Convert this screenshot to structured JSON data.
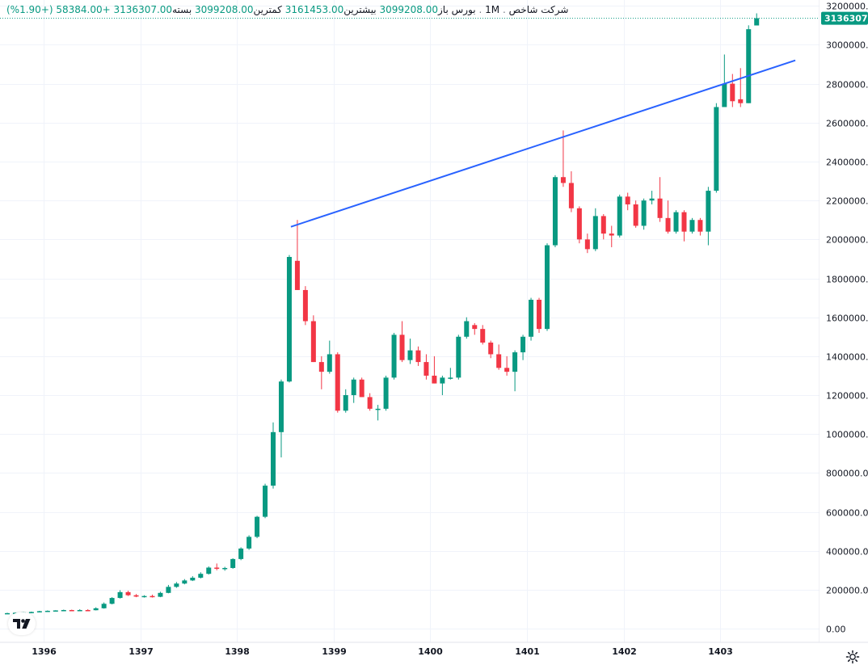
{
  "legend": {
    "title": "شرکت شاخص",
    "interval": "1M",
    "exchange": "بورس",
    "sep": ".",
    "open_label": "باز",
    "open_value": "3099208.00",
    "high_label": "بیشترین",
    "high_value": "3161453.00",
    "low_label": "کمترین",
    "low_value": "3099208.00",
    "close_label": "بسته",
    "close_value": "3136307.00",
    "change": "+58384.00 (+1.90%)"
  },
  "price_tag": "3136307.0",
  "colors": {
    "up": "#089981",
    "down": "#f23645",
    "trendline": "#2962ff",
    "grid": "#f0f3fa"
  },
  "chart_data": {
    "type": "candlestick",
    "ylim": [
      -70000,
      3230000
    ],
    "y_ticks": [
      0,
      200000,
      400000,
      600000,
      800000,
      1000000,
      1200000,
      1400000,
      1600000,
      1800000,
      2000000,
      2200000,
      2400000,
      2600000,
      2800000,
      3000000,
      3200000
    ],
    "y_tick_labels": [
      "0.00",
      "200000.0",
      "400000.0",
      "600000.0",
      "800000.0",
      "1000000.0",
      "1200000.0",
      "1400000.0",
      "1600000.0",
      "1800000.0",
      "2000000.0",
      "2200000.0",
      "2400000.0",
      "2600000.0",
      "2800000.0",
      "3000000.0",
      "3200000.0"
    ],
    "x_tick_labels": [
      "1396",
      "1397",
      "1398",
      "1399",
      "1400",
      "1401",
      "1402",
      "1403"
    ],
    "x_tick_index": [
      4.5,
      16.5,
      28.5,
      40.5,
      52.5,
      64.5,
      76.5,
      88.5
    ],
    "candles": [
      {
        "o": 80000,
        "h": 82000,
        "l": 78000,
        "c": 80000
      },
      {
        "o": 80000,
        "h": 83000,
        "l": 79000,
        "c": 82000
      },
      {
        "o": 82000,
        "h": 85000,
        "l": 81000,
        "c": 84000
      },
      {
        "o": 84000,
        "h": 88000,
        "l": 83000,
        "c": 86000
      },
      {
        "o": 86000,
        "h": 92000,
        "l": 85000,
        "c": 90000
      },
      {
        "o": 90000,
        "h": 94000,
        "l": 88000,
        "c": 92000
      },
      {
        "o": 92000,
        "h": 95000,
        "l": 90000,
        "c": 94000
      },
      {
        "o": 94000,
        "h": 98000,
        "l": 92000,
        "c": 96000
      },
      {
        "o": 96000,
        "h": 98000,
        "l": 93000,
        "c": 95000
      },
      {
        "o": 95000,
        "h": 100000,
        "l": 93000,
        "c": 96000
      },
      {
        "o": 96000,
        "h": 100000,
        "l": 94000,
        "c": 95000
      },
      {
        "o": 95000,
        "h": 110000,
        "l": 94000,
        "c": 105000
      },
      {
        "o": 105000,
        "h": 135000,
        "l": 103000,
        "c": 128000
      },
      {
        "o": 128000,
        "h": 162000,
        "l": 125000,
        "c": 158000
      },
      {
        "o": 158000,
        "h": 198000,
        "l": 155000,
        "c": 188000
      },
      {
        "o": 188000,
        "h": 195000,
        "l": 168000,
        "c": 172000
      },
      {
        "o": 172000,
        "h": 178000,
        "l": 162000,
        "c": 165000
      },
      {
        "o": 165000,
        "h": 172000,
        "l": 160000,
        "c": 168000
      },
      {
        "o": 168000,
        "h": 175000,
        "l": 160000,
        "c": 164000
      },
      {
        "o": 164000,
        "h": 190000,
        "l": 162000,
        "c": 184000
      },
      {
        "o": 184000,
        "h": 225000,
        "l": 182000,
        "c": 215000
      },
      {
        "o": 215000,
        "h": 240000,
        "l": 210000,
        "c": 232000
      },
      {
        "o": 232000,
        "h": 255000,
        "l": 228000,
        "c": 248000
      },
      {
        "o": 248000,
        "h": 270000,
        "l": 245000,
        "c": 262000
      },
      {
        "o": 262000,
        "h": 290000,
        "l": 258000,
        "c": 282000
      },
      {
        "o": 282000,
        "h": 320000,
        "l": 278000,
        "c": 314000
      },
      {
        "o": 314000,
        "h": 335000,
        "l": 300000,
        "c": 308000
      },
      {
        "o": 308000,
        "h": 318000,
        "l": 298000,
        "c": 312000
      },
      {
        "o": 312000,
        "h": 362000,
        "l": 308000,
        "c": 358000
      },
      {
        "o": 358000,
        "h": 418000,
        "l": 352000,
        "c": 412000
      },
      {
        "o": 412000,
        "h": 480000,
        "l": 405000,
        "c": 472000
      },
      {
        "o": 472000,
        "h": 580000,
        "l": 465000,
        "c": 575000
      },
      {
        "o": 575000,
        "h": 745000,
        "l": 568000,
        "c": 735000
      },
      {
        "o": 735000,
        "h": 1060000,
        "l": 720000,
        "c": 1010000
      },
      {
        "o": 1010000,
        "h": 1280000,
        "l": 880000,
        "c": 1270000
      },
      {
        "o": 1270000,
        "h": 1920000,
        "l": 1265000,
        "c": 1910000
      },
      {
        "o": 1890000,
        "h": 2100000,
        "l": 1740000,
        "c": 1740000
      },
      {
        "o": 1740000,
        "h": 1760000,
        "l": 1560000,
        "c": 1580000
      },
      {
        "o": 1580000,
        "h": 1610000,
        "l": 1370000,
        "c": 1370000
      },
      {
        "o": 1370000,
        "h": 1400000,
        "l": 1230000,
        "c": 1320000
      },
      {
        "o": 1320000,
        "h": 1480000,
        "l": 1310000,
        "c": 1410000
      },
      {
        "o": 1410000,
        "h": 1420000,
        "l": 1110000,
        "c": 1120000
      },
      {
        "o": 1120000,
        "h": 1230000,
        "l": 1110000,
        "c": 1200000
      },
      {
        "o": 1200000,
        "h": 1290000,
        "l": 1160000,
        "c": 1280000
      },
      {
        "o": 1280000,
        "h": 1290000,
        "l": 1190000,
        "c": 1190000
      },
      {
        "o": 1190000,
        "h": 1210000,
        "l": 1120000,
        "c": 1130000
      },
      {
        "o": 1130000,
        "h": 1150000,
        "l": 1070000,
        "c": 1130000
      },
      {
        "o": 1130000,
        "h": 1300000,
        "l": 1120000,
        "c": 1290000
      },
      {
        "o": 1290000,
        "h": 1520000,
        "l": 1280000,
        "c": 1510000
      },
      {
        "o": 1510000,
        "h": 1580000,
        "l": 1370000,
        "c": 1380000
      },
      {
        "o": 1380000,
        "h": 1490000,
        "l": 1360000,
        "c": 1430000
      },
      {
        "o": 1430000,
        "h": 1450000,
        "l": 1350000,
        "c": 1370000
      },
      {
        "o": 1370000,
        "h": 1410000,
        "l": 1280000,
        "c": 1300000
      },
      {
        "o": 1300000,
        "h": 1400000,
        "l": 1260000,
        "c": 1260000
      },
      {
        "o": 1260000,
        "h": 1300000,
        "l": 1200000,
        "c": 1290000
      },
      {
        "o": 1290000,
        "h": 1340000,
        "l": 1280000,
        "c": 1290000
      },
      {
        "o": 1290000,
        "h": 1510000,
        "l": 1280000,
        "c": 1500000
      },
      {
        "o": 1500000,
        "h": 1600000,
        "l": 1490000,
        "c": 1580000
      },
      {
        "o": 1560000,
        "h": 1570000,
        "l": 1510000,
        "c": 1540000
      },
      {
        "o": 1540000,
        "h": 1560000,
        "l": 1460000,
        "c": 1470000
      },
      {
        "o": 1470000,
        "h": 1480000,
        "l": 1390000,
        "c": 1410000
      },
      {
        "o": 1410000,
        "h": 1460000,
        "l": 1330000,
        "c": 1340000
      },
      {
        "o": 1340000,
        "h": 1400000,
        "l": 1300000,
        "c": 1320000
      },
      {
        "o": 1320000,
        "h": 1430000,
        "l": 1220000,
        "c": 1420000
      },
      {
        "o": 1420000,
        "h": 1510000,
        "l": 1380000,
        "c": 1500000
      },
      {
        "o": 1500000,
        "h": 1700000,
        "l": 1480000,
        "c": 1690000
      },
      {
        "o": 1690000,
        "h": 1700000,
        "l": 1520000,
        "c": 1540000
      },
      {
        "o": 1540000,
        "h": 1980000,
        "l": 1530000,
        "c": 1970000
      },
      {
        "o": 1970000,
        "h": 2330000,
        "l": 1960000,
        "c": 2320000
      },
      {
        "o": 2320000,
        "h": 2560000,
        "l": 2270000,
        "c": 2290000
      },
      {
        "o": 2290000,
        "h": 2350000,
        "l": 2140000,
        "c": 2160000
      },
      {
        "o": 2160000,
        "h": 2170000,
        "l": 1980000,
        "c": 2000000
      },
      {
        "o": 2000000,
        "h": 2030000,
        "l": 1930000,
        "c": 1950000
      },
      {
        "o": 1950000,
        "h": 2160000,
        "l": 1940000,
        "c": 2120000
      },
      {
        "o": 2120000,
        "h": 2130000,
        "l": 2000000,
        "c": 2030000
      },
      {
        "o": 2030000,
        "h": 2070000,
        "l": 1960000,
        "c": 2020000
      },
      {
        "o": 2020000,
        "h": 2230000,
        "l": 2010000,
        "c": 2220000
      },
      {
        "o": 2220000,
        "h": 2240000,
        "l": 2150000,
        "c": 2180000
      },
      {
        "o": 2180000,
        "h": 2200000,
        "l": 2060000,
        "c": 2070000
      },
      {
        "o": 2070000,
        "h": 2210000,
        "l": 2050000,
        "c": 2200000
      },
      {
        "o": 2200000,
        "h": 2250000,
        "l": 2180000,
        "c": 2210000
      },
      {
        "o": 2210000,
        "h": 2320000,
        "l": 2090000,
        "c": 2110000
      },
      {
        "o": 2110000,
        "h": 2200000,
        "l": 2030000,
        "c": 2040000
      },
      {
        "o": 2040000,
        "h": 2150000,
        "l": 2030000,
        "c": 2140000
      },
      {
        "o": 2140000,
        "h": 2150000,
        "l": 1990000,
        "c": 2040000
      },
      {
        "o": 2040000,
        "h": 2110000,
        "l": 2030000,
        "c": 2100000
      },
      {
        "o": 2100000,
        "h": 2110000,
        "l": 2020000,
        "c": 2040000
      },
      {
        "o": 2040000,
        "h": 2270000,
        "l": 1970000,
        "c": 2250000
      },
      {
        "o": 2250000,
        "h": 2700000,
        "l": 2240000,
        "c": 2680000
      },
      {
        "o": 2680000,
        "h": 2950000,
        "l": 2680000,
        "c": 2800000
      },
      {
        "o": 2800000,
        "h": 2850000,
        "l": 2680000,
        "c": 2710000
      },
      {
        "o": 2720000,
        "h": 2880000,
        "l": 2680000,
        "c": 2700000
      },
      {
        "o": 2700000,
        "h": 3100000,
        "l": 2700000,
        "c": 3080000
      },
      {
        "o": 3099208,
        "h": 3161453,
        "l": 3099208,
        "c": 3136307
      }
    ],
    "trendline": {
      "x0_index": 35.2,
      "y0": 2065000,
      "x1_index": 97.8,
      "y1": 2920000
    }
  }
}
